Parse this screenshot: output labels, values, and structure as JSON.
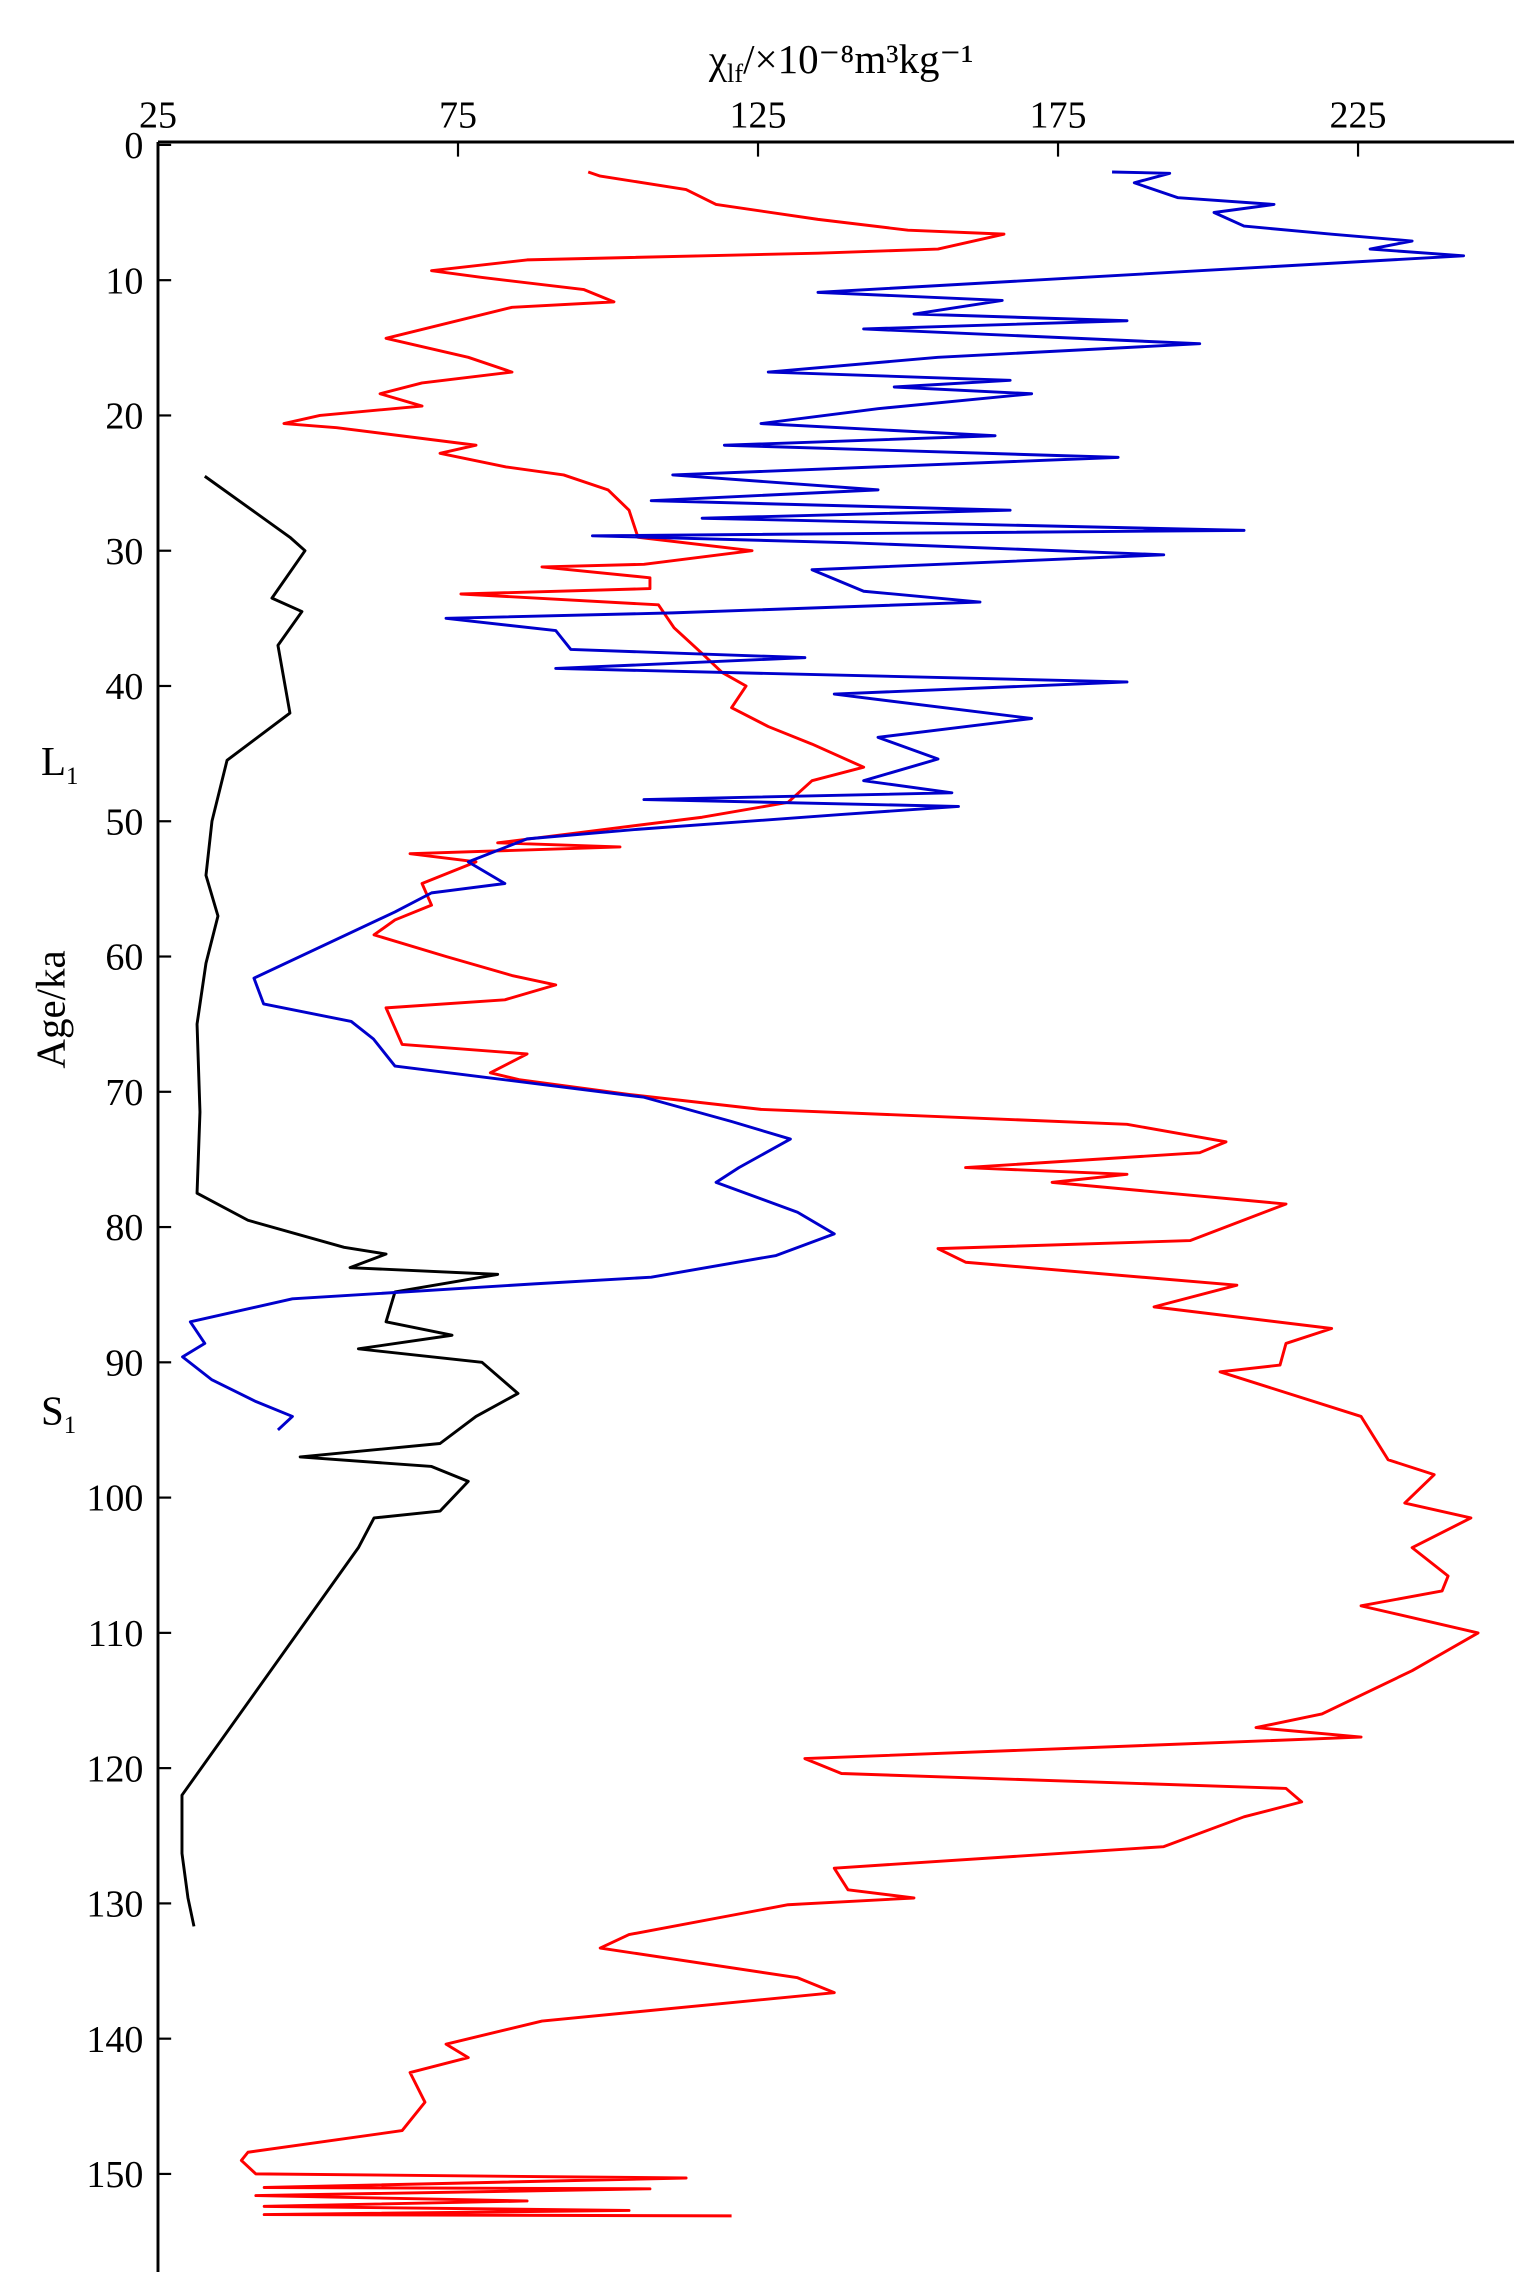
{
  "chart_data": {
    "type": "line",
    "x_label": {
      "symbol": "χ",
      "subscript": "lf",
      "unit": "/×10⁻⁸m³kg⁻¹"
    },
    "y_label": "Age/ka",
    "annotations": [
      {
        "text": "L",
        "subscript": "1",
        "age": 45.5
      },
      {
        "text": "S",
        "subscript": "1",
        "age": 93.5
      }
    ],
    "xlim": [
      25,
      251
    ],
    "xticks": [
      25,
      75,
      125,
      175,
      225
    ],
    "ylim": [
      0,
      158
    ],
    "yticks": [
      0,
      10,
      20,
      30,
      40,
      50,
      60,
      70,
      80,
      90,
      100,
      110,
      120,
      130,
      140,
      150
    ],
    "series": [
      {
        "color": "#000000",
        "x": [
          32.8,
          47,
          49.5,
          44,
          49,
          45,
          47,
          36.5,
          34,
          33,
          35,
          33,
          31.5,
          32,
          31.5,
          40,
          56,
          63,
          57,
          81.6,
          64.5,
          63,
          74,
          58.4,
          79,
          85,
          78,
          72,
          48.7,
          70.6,
          76.7,
          72,
          61,
          58.4,
          29,
          29,
          30,
          31
        ],
        "y": [
          24.5,
          29,
          30,
          33.5,
          34.5,
          37,
          42,
          45.5,
          50,
          54,
          57,
          60.5,
          65,
          71.5,
          77.5,
          79.5,
          81.5,
          82,
          83,
          83.5,
          84.8,
          87,
          88,
          89,
          90,
          92.3,
          94,
          96,
          97,
          97.7,
          98.8,
          101,
          101.5,
          103.7,
          122,
          126.3,
          129.6,
          131.7
        ]
      },
      {
        "color": "#ff0000",
        "x": [
          96.7,
          98.7,
          113,
          118,
          135,
          150,
          166,
          155,
          135,
          86.5,
          70.6,
          79,
          96,
          101,
          84,
          63,
          76.7,
          84,
          69,
          62,
          69,
          52,
          46,
          54.8,
          78,
          72,
          83,
          92.6,
          100,
          103.5,
          105,
          124,
          106,
          89,
          107,
          107,
          75.5,
          108.4,
          111,
          115.7,
          119,
          123,
          120.6,
          126.7,
          134,
          142.6,
          134,
          130,
          115.7,
          96,
          81.6,
          102,
          67,
          78,
          69,
          70.6,
          64.5,
          61,
          73,
          84,
          91.3,
          82.8,
          63,
          65.7,
          86.5,
          80.4,
          85.2,
          103.5,
          125.5,
          186.5,
          203,
          198.6,
          159.6,
          186.5,
          174,
          213,
          197,
          155,
          159.6,
          204.8,
          191,
          220.6,
          213,
          212,
          202,
          225.5,
          230,
          237.7,
          232.8,
          243.8,
          234,
          240,
          239,
          225.5,
          245,
          234,
          219,
          208,
          225.5,
          132.8,
          138.9,
          213,
          215.6,
          206,
          192.6,
          137.7,
          140,
          151,
          130,
          103.5,
          98.7,
          131.6,
          137.7,
          89,
          73,
          76.7,
          67,
          69.5,
          65.7,
          40,
          38.9,
          41.3,
          113,
          42.7,
          107,
          41.3,
          86.5,
          42.7,
          103.5,
          42.7,
          120.6
        ],
        "y": [
          2,
          2.3,
          3.3,
          4.4,
          5.5,
          6.3,
          6.6,
          7.7,
          8,
          8.5,
          9.3,
          9.8,
          10.7,
          11.6,
          12,
          14.3,
          15.7,
          16.8,
          17.6,
          18.4,
          19.3,
          20,
          20.6,
          20.9,
          22.2,
          22.8,
          23.8,
          24.4,
          25.5,
          27,
          29,
          30,
          31,
          31.2,
          32,
          32.8,
          33.2,
          34,
          35.7,
          37.6,
          39,
          40,
          41.6,
          43,
          44.3,
          46,
          47,
          48.6,
          49.7,
          50.8,
          51.6,
          51.9,
          52.4,
          53,
          54.6,
          56.2,
          57.3,
          58.4,
          60,
          61.4,
          62.1,
          63.2,
          63.8,
          66.5,
          67.2,
          68.6,
          69.1,
          70.2,
          71.3,
          72.4,
          73.7,
          74.5,
          75.6,
          76.1,
          76.7,
          78.3,
          81,
          81.6,
          82.6,
          84.3,
          85.9,
          87.5,
          88.6,
          90.2,
          90.7,
          94,
          97.2,
          98.3,
          100.4,
          101.5,
          103.7,
          105.8,
          106.9,
          108,
          110,
          112.8,
          116,
          117,
          117.7,
          119.3,
          120.4,
          121.5,
          122.5,
          123.6,
          125.8,
          127.4,
          129,
          129.6,
          130.1,
          132.3,
          133.3,
          135.5,
          136.6,
          138.7,
          140.4,
          141.4,
          142.5,
          144.7,
          146.8,
          148.4,
          149,
          150,
          150.3,
          151,
          151.1,
          151.6,
          152,
          152.4,
          152.7,
          153,
          153.1
        ]
      },
      {
        "color": "#0000cc",
        "x": [
          184,
          193.6,
          187.7,
          195,
          211,
          201,
          206,
          220.6,
          234,
          227,
          242.6,
          198.6,
          179,
          135,
          165.7,
          151,
          186.5,
          142.6,
          198.6,
          155,
          126.7,
          167,
          147.7,
          170.6,
          145,
          125.5,
          164.5,
          119.4,
          185,
          110.8,
          145,
          107.2,
          167,
          115.7,
          206,
          97.4,
          140,
          192.6,
          134,
          142.6,
          162,
          110.8,
          73,
          91.3,
          93.8,
          132.8,
          91.3,
          186.5,
          137.7,
          170.6,
          145,
          155,
          142.6,
          157.3,
          106,
          158.4,
          139,
          104.8,
          86.5,
          76.7,
          82.8,
          70.6,
          64.5,
          41,
          42.6,
          57.2,
          60.9,
          64.5,
          79,
          106,
          120.6,
          130.4,
          121.8,
          118,
          131.6,
          137.7,
          128,
          107.2,
          87.7,
          47.4,
          30.4,
          32.8,
          29.1,
          34,
          41.3,
          47.4,
          45
        ],
        "y": [
          2,
          2.1,
          2.8,
          3.9,
          4.4,
          5,
          6,
          6.6,
          7.1,
          7.7,
          8.2,
          9.3,
          9.8,
          10.9,
          11.5,
          12.5,
          13,
          13.6,
          14.7,
          15.7,
          16.8,
          17.4,
          17.9,
          18.4,
          19.5,
          20.6,
          21.5,
          22.2,
          23.1,
          24.4,
          25.5,
          26.3,
          27,
          27.6,
          28.5,
          28.9,
          29.4,
          30.3,
          31.4,
          33,
          33.8,
          34.6,
          35,
          35.9,
          37.3,
          37.9,
          38.7,
          39.7,
          40.6,
          42.4,
          43.8,
          45.4,
          47,
          47.9,
          48.4,
          48.9,
          49.5,
          50.6,
          51.3,
          53,
          54.6,
          55.3,
          56.7,
          61.6,
          63.5,
          64.8,
          66.1,
          68.1,
          68.9,
          70.4,
          72.2,
          73.5,
          75.6,
          76.7,
          78.9,
          80.5,
          82.1,
          83.7,
          84.2,
          85.3,
          87,
          88.6,
          89.6,
          91.3,
          92.9,
          94,
          95
        ]
      }
    ]
  }
}
